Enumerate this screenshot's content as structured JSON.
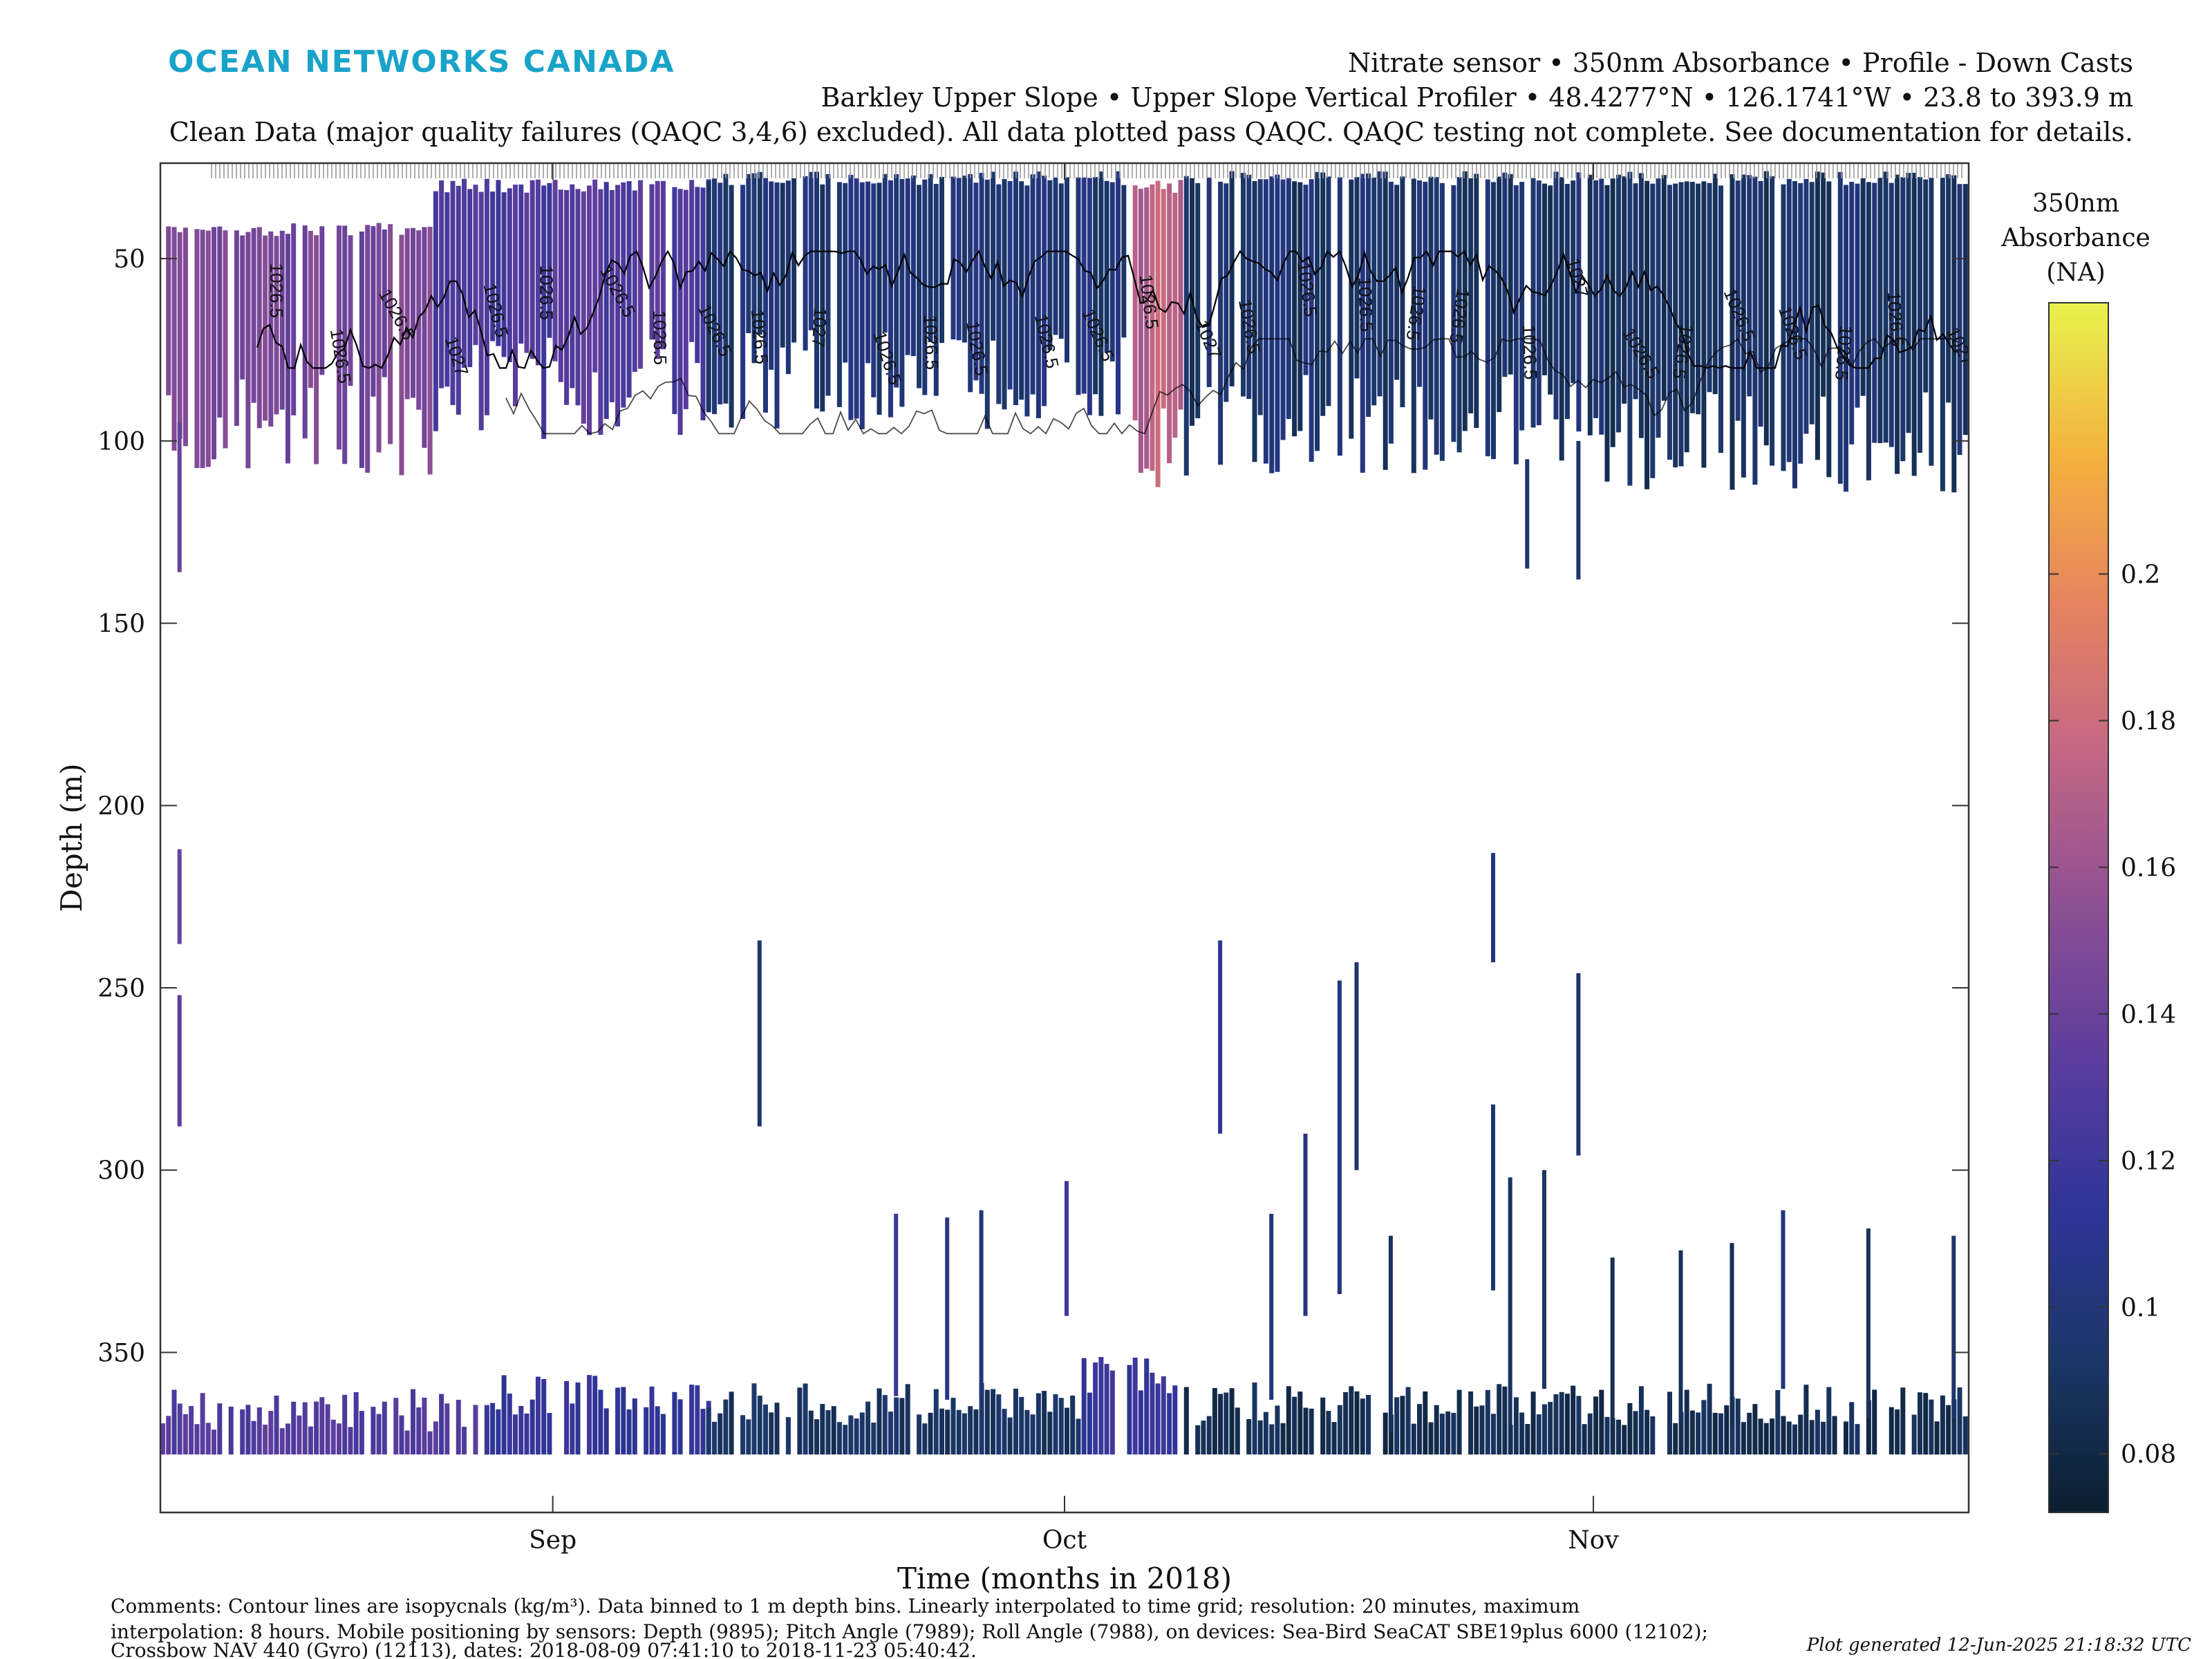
{
  "header": {
    "logo": "OCEAN NETWORKS CANADA",
    "line1": "Nitrate sensor • 350nm Absorbance • Profile - Down Casts",
    "line2": "Barkley Upper Slope • Upper Slope Vertical Profiler • 48.4277°N • 126.1741°W • 23.8 to 393.9 m",
    "line3": "Clean Data (major quality failures (QAQC 3,4,6) excluded). All data plotted pass QAQC. QAQC testing not complete. See documentation for details."
  },
  "footer": {
    "comment1": "Comments: Contour lines are isopycnals (kg/m³). Data binned to 1 m depth bins. Linearly interpolated to time grid; resolution: 20 minutes, maximum",
    "comment2": "interpolation: 8 hours. Mobile positioning by sensors: Depth (9895); Pitch Angle (7989); Roll Angle (7988), on devices: Sea-Bird SeaCAT SBE19plus 6000 (12102);",
    "comment3": "Crossbow NAV 440 (Gyro) (12113), dates: 2018-08-09 07:41:10 to 2018-11-23 05:40:42.",
    "generated": "Plot generated 12-Jun-2025 21:18:32 UTC"
  },
  "colors": {
    "colormap": [
      "#0b1f30",
      "#1b3768",
      "#2f3599",
      "#5c3d9e",
      "#8d4f94",
      "#c26685",
      "#e6825f",
      "#f3b23d",
      "#e8f24e"
    ],
    "contour": "#000000",
    "axis": "#333333"
  },
  "chart_data": {
    "type": "heatmap",
    "xlabel": "Time (months in 2018)",
    "ylabel": "Depth (m)",
    "x_range": [
      "2018-08-09",
      "2018-11-23"
    ],
    "x_ticks": [
      "Sep",
      "Oct",
      "Nov"
    ],
    "x_tick_dates": [
      "2018-09-01",
      "2018-10-01",
      "2018-11-01"
    ],
    "ylim": [
      23.8,
      393.9
    ],
    "y_reversed": true,
    "y_ticks": [
      50,
      100,
      150,
      200,
      250,
      300,
      350
    ],
    "colorbar": {
      "title_lines": [
        "350nm",
        "Absorbance",
        "(NA)"
      ],
      "range": [
        0.072,
        0.237
      ],
      "ticks": [
        0.08,
        0.1,
        0.12,
        0.14,
        0.16,
        0.18,
        0.2
      ]
    },
    "contour_label_value": "1026.5",
    "contour_label_value_2": "1027",
    "upper_layer": [
      {
        "start": "2018-08-09",
        "end": "2018-08-25",
        "top": 40,
        "bottom": 90,
        "value": 0.145
      },
      {
        "start": "2018-08-25",
        "end": "2018-09-10",
        "top": 28,
        "bottom": 80,
        "value": 0.128
      },
      {
        "start": "2018-09-10",
        "end": "2018-10-05",
        "top": 26,
        "bottom": 78,
        "value": 0.098
      },
      {
        "start": "2018-10-05",
        "end": "2018-10-08",
        "top": 28,
        "bottom": 95,
        "value": 0.172
      },
      {
        "start": "2018-10-08",
        "end": "2018-11-01",
        "top": 26,
        "bottom": 90,
        "value": 0.095
      },
      {
        "start": "2018-11-01",
        "end": "2018-11-23",
        "top": 26,
        "bottom": 95,
        "value": 0.092
      }
    ],
    "bottom_layer": [
      {
        "start": "2018-08-09",
        "end": "2018-08-28",
        "top": 372,
        "bottom": 378,
        "value": 0.13
      },
      {
        "start": "2018-08-28",
        "end": "2018-09-10",
        "top": 368,
        "bottom": 378,
        "value": 0.115
      },
      {
        "start": "2018-09-10",
        "end": "2018-10-02",
        "top": 370,
        "bottom": 378,
        "value": 0.09
      },
      {
        "start": "2018-10-02",
        "end": "2018-10-08",
        "top": 362,
        "bottom": 378,
        "value": 0.115
      },
      {
        "start": "2018-10-08",
        "end": "2018-11-23",
        "top": 370,
        "bottom": 378,
        "value": 0.085
      }
    ],
    "isolated_profiles": [
      {
        "date": "2018-08-10",
        "top": 252,
        "bottom": 288,
        "value": 0.135
      },
      {
        "date": "2018-08-10",
        "top": 212,
        "bottom": 238,
        "value": 0.14
      },
      {
        "date": "2018-08-10",
        "top": 95,
        "bottom": 136,
        "value": 0.14
      },
      {
        "date": "2018-09-13",
        "top": 237,
        "bottom": 288,
        "value": 0.095
      },
      {
        "date": "2018-09-21",
        "top": 312,
        "bottom": 362,
        "value": 0.118
      },
      {
        "date": "2018-09-24",
        "top": 313,
        "bottom": 363,
        "value": 0.105
      },
      {
        "date": "2018-09-26",
        "top": 311,
        "bottom": 362,
        "value": 0.098
      },
      {
        "date": "2018-10-01",
        "top": 303,
        "bottom": 340,
        "value": 0.12
      },
      {
        "date": "2018-10-10",
        "top": 237,
        "bottom": 290,
        "value": 0.112
      },
      {
        "date": "2018-10-13",
        "top": 312,
        "bottom": 363,
        "value": 0.1
      },
      {
        "date": "2018-10-15",
        "top": 290,
        "bottom": 340,
        "value": 0.105
      },
      {
        "date": "2018-10-17",
        "top": 248,
        "bottom": 334,
        "value": 0.1
      },
      {
        "date": "2018-10-18",
        "top": 243,
        "bottom": 300,
        "value": 0.095
      },
      {
        "date": "2018-10-20",
        "top": 318,
        "bottom": 372,
        "value": 0.088
      },
      {
        "date": "2018-10-26",
        "top": 213,
        "bottom": 243,
        "value": 0.1
      },
      {
        "date": "2018-10-26",
        "top": 282,
        "bottom": 333,
        "value": 0.095
      },
      {
        "date": "2018-10-27",
        "top": 302,
        "bottom": 370,
        "value": 0.09
      },
      {
        "date": "2018-10-29",
        "top": 300,
        "bottom": 360,
        "value": 0.092
      },
      {
        "date": "2018-10-31",
        "top": 246,
        "bottom": 296,
        "value": 0.095
      },
      {
        "date": "2018-11-02",
        "top": 324,
        "bottom": 372,
        "value": 0.085
      },
      {
        "date": "2018-11-06",
        "top": 322,
        "bottom": 370,
        "value": 0.088
      },
      {
        "date": "2018-11-09",
        "top": 320,
        "bottom": 370,
        "value": 0.086
      },
      {
        "date": "2018-11-12",
        "top": 311,
        "bottom": 360,
        "value": 0.1
      },
      {
        "date": "2018-11-17",
        "top": 316,
        "bottom": 368,
        "value": 0.09
      },
      {
        "date": "2018-11-22",
        "top": 318,
        "bottom": 368,
        "value": 0.095
      },
      {
        "date": "2018-10-28",
        "top": 105,
        "bottom": 135,
        "value": 0.095
      },
      {
        "date": "2018-10-31",
        "top": 100,
        "bottom": 138,
        "value": 0.095
      }
    ]
  }
}
